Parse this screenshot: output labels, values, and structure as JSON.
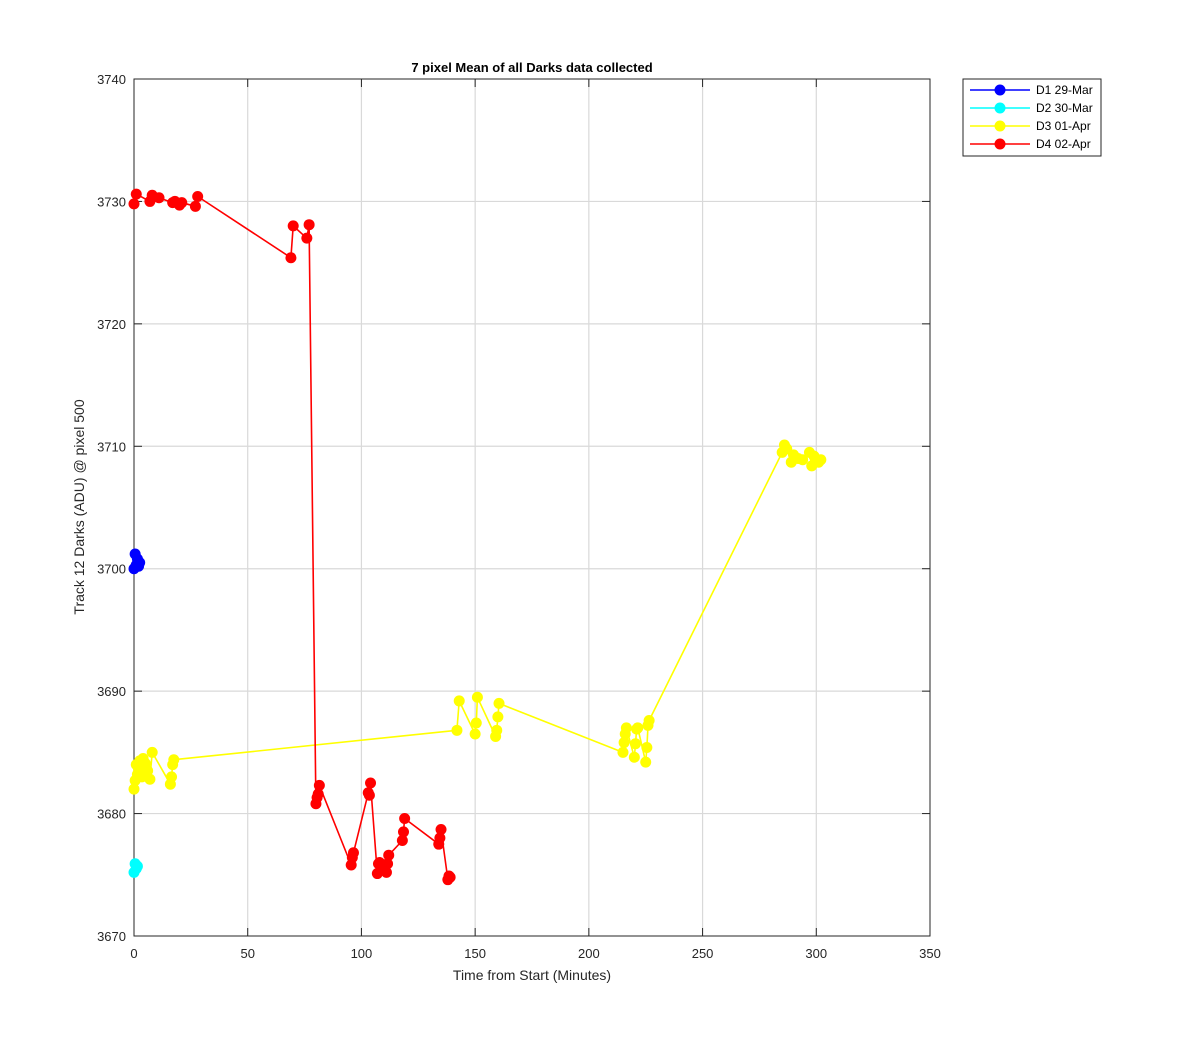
{
  "chart_data": {
    "type": "line",
    "title": "7 pixel Mean of all Darks data collected",
    "xlabel": "Time from Start (Minutes)",
    "ylabel": "Track 12 Darks (ADU) @ pixel 500",
    "xlim": [
      0,
      350
    ],
    "ylim": [
      3670,
      3740
    ],
    "xticks": [
      0,
      50,
      100,
      150,
      200,
      250,
      300,
      350
    ],
    "yticks": [
      3670,
      3680,
      3690,
      3700,
      3710,
      3720,
      3730,
      3740
    ],
    "grid": true,
    "legend_position": "outside-top-right",
    "series": [
      {
        "name": "D1 29-Mar",
        "color": "#0000ff",
        "x": [
          0,
          0.5,
          1,
          1.5,
          2,
          2.5
        ],
        "y": [
          3700.0,
          3701.2,
          3700.3,
          3700.8,
          3700.2,
          3700.5
        ]
      },
      {
        "name": "D2 30-Mar",
        "color": "#00ffff",
        "x": [
          0,
          0.5,
          1,
          1.5
        ],
        "y": [
          3675.2,
          3675.9,
          3675.5,
          3675.7
        ]
      },
      {
        "name": "D3 01-Apr",
        "color": "#ffff00",
        "x": [
          0,
          0.5,
          1,
          1.5,
          2,
          2.5,
          3,
          3.5,
          4,
          5,
          6,
          7,
          8,
          16,
          16.5,
          17,
          17.5,
          142,
          143,
          150,
          150.5,
          151,
          159,
          159.5,
          160,
          160.5,
          215,
          215.5,
          216,
          216.5,
          220,
          220.5,
          221,
          221.5,
          225,
          225.5,
          226,
          226.5,
          285,
          286,
          287,
          289,
          290,
          292,
          294,
          297,
          298,
          299,
          301,
          302
        ],
        "y": [
          3682.0,
          3682.7,
          3684.0,
          3683.2,
          3683.6,
          3684.3,
          3683.8,
          3683.0,
          3684.5,
          3684.1,
          3683.5,
          3682.8,
          3685.0,
          3682.4,
          3683.0,
          3684.0,
          3684.4,
          3686.8,
          3689.2,
          3686.5,
          3687.4,
          3689.5,
          3686.3,
          3686.8,
          3687.9,
          3689.0,
          3685.0,
          3685.8,
          3686.5,
          3687.0,
          3684.6,
          3685.7,
          3686.9,
          3687.0,
          3684.2,
          3685.4,
          3687.2,
          3687.6,
          3709.5,
          3710.1,
          3709.8,
          3708.7,
          3709.3,
          3709.0,
          3708.9,
          3709.5,
          3708.4,
          3709.2,
          3708.7,
          3708.9
        ]
      },
      {
        "name": "D4 02-Apr",
        "color": "#ff0000",
        "x": [
          0,
          1,
          7,
          8,
          11,
          17,
          18,
          20,
          21,
          27,
          28,
          69,
          70,
          76,
          77,
          80,
          80.5,
          81,
          81.5,
          95.5,
          96,
          96.5,
          103,
          103.5,
          104,
          107,
          107.5,
          108,
          109,
          111,
          111.5,
          112,
          118,
          118.5,
          119,
          134,
          134.5,
          135,
          138,
          138.5,
          139
        ],
        "y": [
          3729.8,
          3730.6,
          3730.0,
          3730.5,
          3730.3,
          3729.9,
          3730.0,
          3729.7,
          3729.9,
          3729.6,
          3730.4,
          3725.4,
          3728.0,
          3727.0,
          3728.1,
          3680.8,
          3681.3,
          3681.6,
          3682.3,
          3675.8,
          3676.4,
          3676.8,
          3681.7,
          3681.5,
          3682.5,
          3675.1,
          3675.9,
          3676.0,
          3675.5,
          3675.2,
          3675.9,
          3676.6,
          3677.8,
          3678.5,
          3679.6,
          3677.5,
          3678.0,
          3678.7,
          3674.6,
          3674.9,
          3674.8
        ]
      }
    ]
  }
}
